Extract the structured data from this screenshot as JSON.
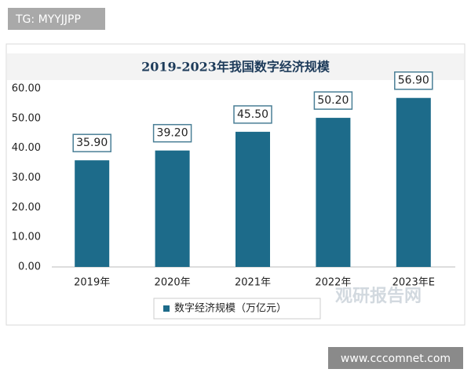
{
  "tag": "TG: MYYJJPP",
  "site": "www.cccomnet.com",
  "watermark": "观研报告网",
  "chart_data": {
    "type": "bar",
    "title": "2019-2023年我国数字经济规模",
    "categories": [
      "2019年",
      "2020年",
      "2021年",
      "2022年",
      "2023年E"
    ],
    "series": [
      {
        "name": "数字经济规模（万亿元）",
        "color": "#1d6b8a",
        "values": [
          35.9,
          39.2,
          45.5,
          50.2,
          56.9
        ],
        "value_labels": [
          "35.90",
          "39.20",
          "45.50",
          "50.20",
          "56.90"
        ]
      }
    ],
    "ylim": [
      0,
      60
    ],
    "yticks": [
      {
        "value": 0,
        "label": "0.00"
      },
      {
        "value": 10,
        "label": "10.00"
      },
      {
        "value": 20,
        "label": "20.00"
      },
      {
        "value": 30,
        "label": "30.00"
      },
      {
        "value": 40,
        "label": "40.00"
      },
      {
        "value": 50,
        "label": "50.00"
      },
      {
        "value": 60,
        "label": "60.00"
      }
    ],
    "grid": false
  }
}
